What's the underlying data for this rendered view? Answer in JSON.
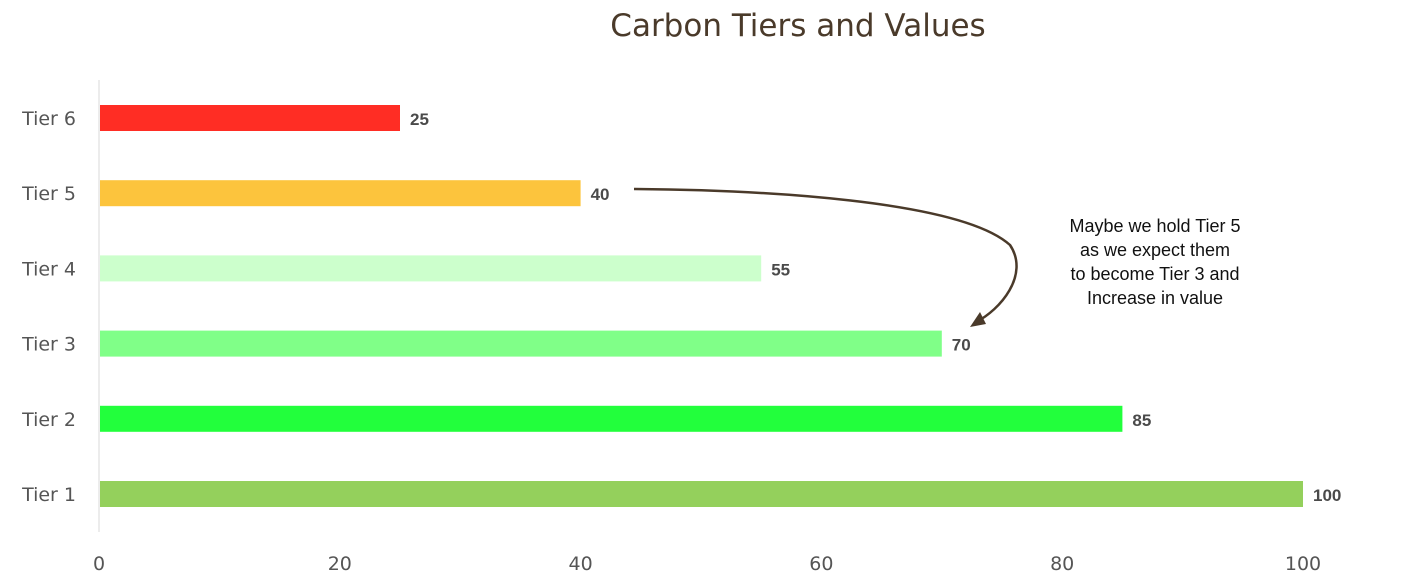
{
  "chart_data": {
    "type": "bar",
    "orientation": "horizontal",
    "title": "Carbon Tiers and Values",
    "categories": [
      "Tier 6",
      "Tier 5",
      "Tier 4",
      "Tier 3",
      "Tier 2",
      "Tier 1"
    ],
    "values": [
      25,
      40,
      55,
      70,
      85,
      100
    ],
    "colors": [
      "#ff2d24",
      "#fcc43d",
      "#ccffcc",
      "#80ff88",
      "#22ff3c",
      "#94d05c"
    ],
    "xlim": [
      0,
      100
    ],
    "xticks": [
      "0",
      "20",
      "40",
      "60",
      "80",
      "100"
    ],
    "xlabel": "",
    "ylabel": "",
    "grid": false,
    "annotation": {
      "text": "Maybe we hold Tier 5 as we expect them to become Tier 3 and Increase in value",
      "lines": [
        "Maybe we hold Tier 5",
        "as we expect them",
        "to become Tier 3 and",
        "Increase in value"
      ],
      "from_category": "Tier 5",
      "to_category": "Tier 3",
      "arrow_color": "#4a3a2a"
    }
  }
}
